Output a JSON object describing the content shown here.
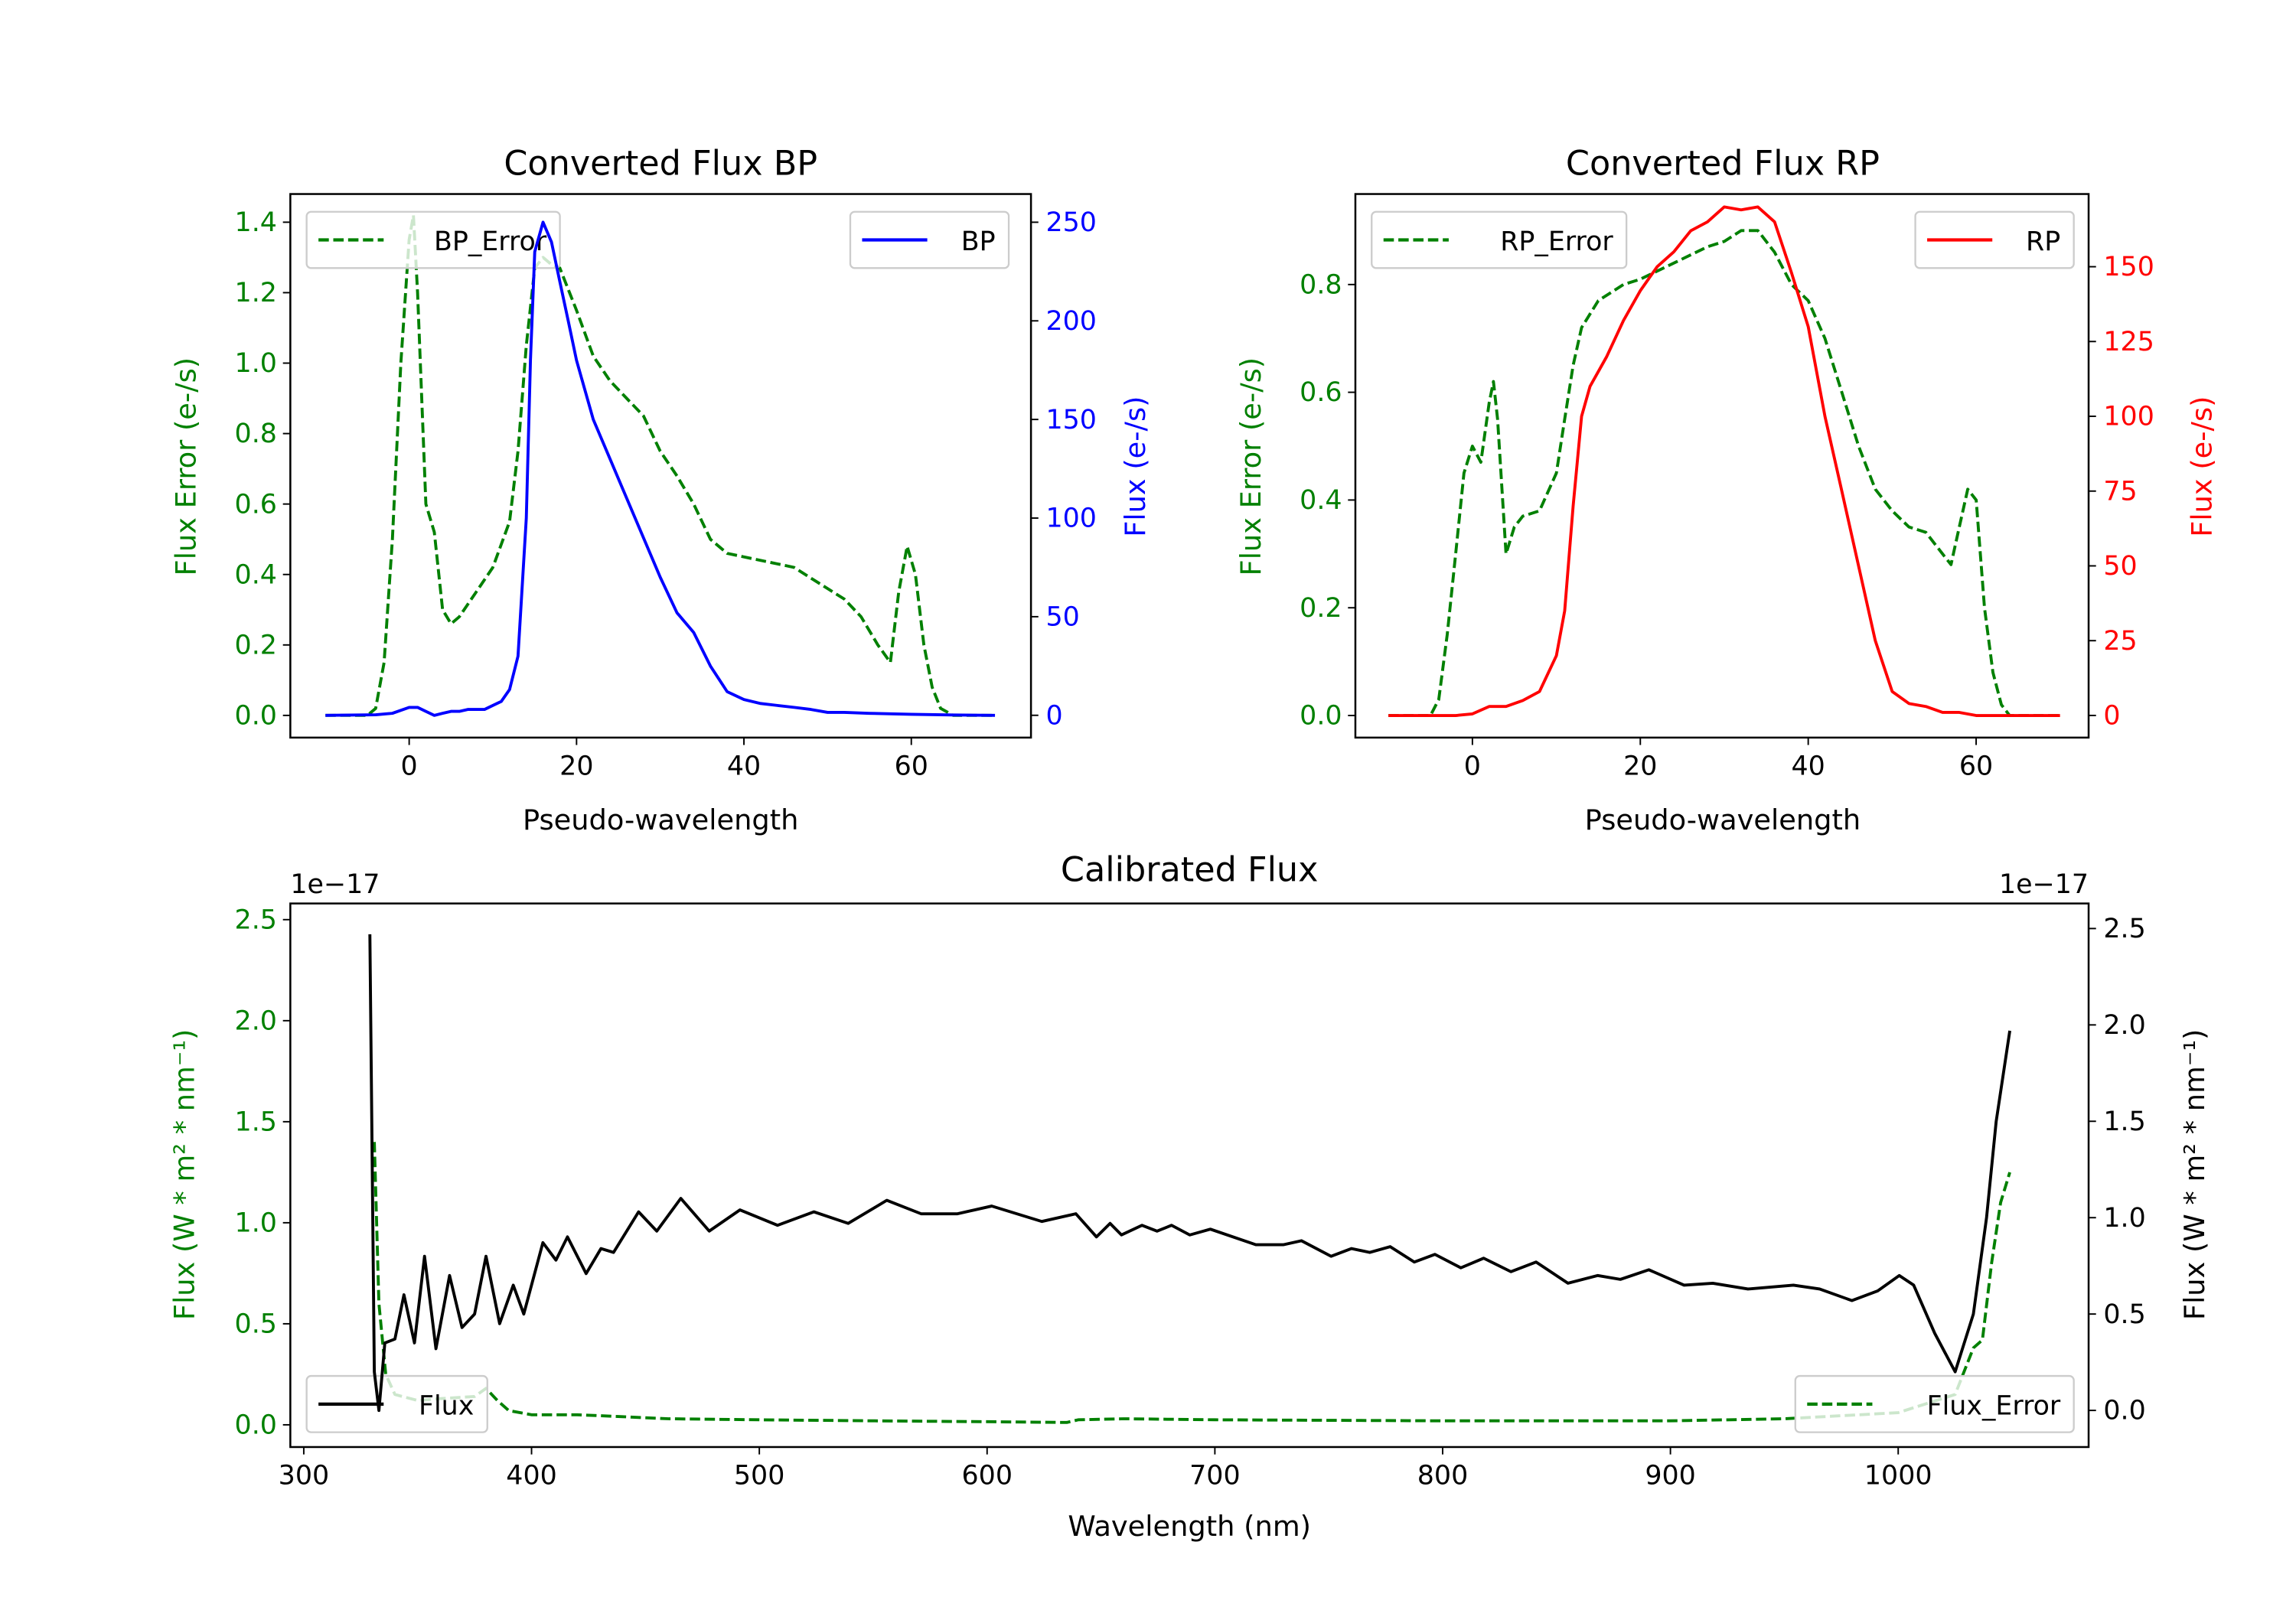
{
  "chart_data": [
    {
      "type": "line",
      "title": "Converted Flux BP",
      "xlabel": "Pseudo-wavelength",
      "ylabel": "Flux Error (e-/s)",
      "ylabel_right": "Flux (e-/s)",
      "xlim": [
        -14.2,
        74.3
      ],
      "ylim": [
        -0.063,
        1.48
      ],
      "ylim_right": [
        -11.3,
        264.3
      ],
      "xticks": [
        0,
        20,
        40,
        60
      ],
      "yticks": [
        "0.0",
        "0.2",
        "0.4",
        "0.6",
        "0.8",
        "1.0",
        "1.2",
        "1.4"
      ],
      "yticks_right": [
        0,
        50,
        100,
        150,
        200,
        250
      ],
      "left_color": "#008000",
      "right_color": "#0000ff",
      "legend_left": {
        "label": "BP_Error",
        "placement": "upper-left"
      },
      "legend_right": {
        "label": "BP",
        "placement": "upper-right"
      },
      "series": [
        {
          "name": "BP_Error",
          "axis": "left",
          "color": "#008000",
          "style": "dashed",
          "x": [
            -10,
            -5,
            -4,
            -3,
            -2,
            -1,
            0,
            0.5,
            1,
            2,
            3,
            4,
            5,
            6,
            8,
            10,
            12,
            13,
            14,
            15,
            16,
            17,
            18,
            20,
            22,
            24,
            26,
            28,
            30,
            32,
            34,
            36,
            38,
            40,
            44,
            46,
            48,
            50,
            52,
            54,
            56,
            57.5,
            58.5,
            59.5,
            60.5,
            61.5,
            62.5,
            63.5,
            65,
            70
          ],
          "y": [
            0,
            0,
            0.02,
            0.15,
            0.5,
            1.0,
            1.35,
            1.42,
            1.2,
            0.6,
            0.52,
            0.3,
            0.26,
            0.28,
            0.35,
            0.42,
            0.55,
            0.75,
            1.05,
            1.27,
            1.3,
            1.28,
            1.27,
            1.15,
            1.02,
            0.95,
            0.9,
            0.85,
            0.75,
            0.68,
            0.6,
            0.5,
            0.46,
            0.45,
            0.43,
            0.42,
            0.39,
            0.36,
            0.33,
            0.28,
            0.2,
            0.15,
            0.35,
            0.48,
            0.4,
            0.2,
            0.08,
            0.02,
            0,
            0
          ]
        },
        {
          "name": "BP",
          "axis": "right",
          "color": "#0000ff",
          "style": "solid",
          "x": [
            -10,
            -4,
            -2,
            0,
            1,
            2,
            3,
            4,
            5,
            6,
            7,
            8,
            9,
            10,
            11,
            12,
            13,
            14,
            14.5,
            15,
            16,
            17,
            18,
            19,
            20,
            22,
            24,
            26,
            28,
            30,
            32,
            34,
            36,
            38,
            40,
            42,
            44,
            46,
            48,
            50,
            52,
            55,
            60,
            65,
            70
          ],
          "y": [
            0,
            0.3,
            1,
            4,
            4,
            2,
            0,
            1,
            2,
            2,
            3,
            3,
            3,
            5,
            7,
            13,
            30,
            100,
            180,
            235,
            250,
            240,
            220,
            200,
            180,
            150,
            130,
            110,
            90,
            70,
            52,
            42,
            25,
            12,
            8,
            6,
            5,
            4,
            3,
            1.5,
            1.5,
            1,
            0.5,
            0.2,
            0
          ]
        }
      ]
    },
    {
      "type": "line",
      "title": "Converted Flux RP",
      "xlabel": "Pseudo-wavelength",
      "ylabel": "Flux Error (e-/s)",
      "ylabel_right": "Flux (e-/s)",
      "xlim": [
        -13.94,
        73.4
      ],
      "ylim": [
        -0.041,
        0.968
      ],
      "ylim_right": [
        -7.4,
        174.3
      ],
      "xticks": [
        0,
        20,
        40,
        60
      ],
      "yticks": [
        "0.0",
        "0.2",
        "0.4",
        "0.6",
        "0.8"
      ],
      "yticks_right": [
        0,
        25,
        50,
        75,
        100,
        125,
        150
      ],
      "left_color": "#008000",
      "right_color": "#ff0000",
      "legend_left": {
        "label": "RP_Error",
        "placement": "upper-left"
      },
      "legend_right": {
        "label": "RP",
        "placement": "upper-right"
      },
      "series": [
        {
          "name": "RP_Error",
          "axis": "left",
          "color": "#008000",
          "style": "dashed",
          "x": [
            -10,
            -5,
            -4,
            -3,
            -2,
            -1,
            0,
            1,
            2,
            2.5,
            3,
            4,
            5,
            6,
            8,
            10,
            11,
            12,
            13,
            15,
            18,
            20,
            24,
            28,
            30,
            32,
            34,
            36,
            38,
            40,
            42,
            44,
            46,
            48,
            50,
            52,
            54,
            56,
            57,
            58,
            59,
            60,
            61,
            62,
            63,
            64,
            70
          ],
          "y": [
            0,
            0,
            0.03,
            0.15,
            0.3,
            0.45,
            0.5,
            0.47,
            0.58,
            0.62,
            0.55,
            0.3,
            0.35,
            0.37,
            0.38,
            0.45,
            0.55,
            0.65,
            0.72,
            0.77,
            0.8,
            0.81,
            0.84,
            0.87,
            0.88,
            0.9,
            0.9,
            0.86,
            0.8,
            0.77,
            0.7,
            0.6,
            0.5,
            0.42,
            0.38,
            0.35,
            0.34,
            0.3,
            0.28,
            0.35,
            0.42,
            0.4,
            0.2,
            0.08,
            0.02,
            0,
            0
          ]
        },
        {
          "name": "RP",
          "axis": "right",
          "color": "#ff0000",
          "style": "solid",
          "x": [
            -10,
            -2,
            0,
            2,
            4,
            6,
            8,
            10,
            11,
            12,
            13,
            14,
            16,
            18,
            20,
            22,
            24,
            26,
            28,
            30,
            32,
            34,
            36,
            38,
            40,
            42,
            44,
            46,
            48,
            50,
            52,
            54,
            56,
            58,
            60,
            62,
            70
          ],
          "y": [
            0,
            0,
            0.5,
            3,
            3,
            5,
            8,
            20,
            35,
            70,
            100,
            110,
            120,
            132,
            142,
            150,
            155,
            162,
            165,
            170,
            169,
            170,
            165,
            148,
            130,
            100,
            75,
            50,
            25,
            8,
            4,
            3,
            1,
            1,
            0,
            0,
            0
          ]
        }
      ]
    },
    {
      "type": "line",
      "title": "Calibrated Flux",
      "xlabel": "Wavelength (nm)",
      "ylabel": "Flux (W * m² * nm⁻¹)",
      "ylabel_right": "Flux (W * m² * nm⁻¹)",
      "offset_left": "1e−17",
      "offset_right": "1e−17",
      "xlim": [
        294.1,
        1083.6
      ],
      "ylim": [
        -0.11,
        2.58
      ],
      "ylim_right": [
        -0.19,
        2.63
      ],
      "xticks": [
        300,
        400,
        500,
        600,
        700,
        800,
        900,
        1000
      ],
      "yticks": [
        "0.0",
        "0.5",
        "1.0",
        "1.5",
        "2.0",
        "2.5"
      ],
      "yticks_right": [
        "0.0",
        "0.5",
        "1.0",
        "1.5",
        "2.0",
        "2.5"
      ],
      "left_color": "#008000",
      "right_color": "#000000",
      "legend_left": {
        "label": "Flux",
        "placement": "lower-left"
      },
      "legend_right": {
        "label": "Flux_Error",
        "placement": "lower-right"
      },
      "series": [
        {
          "name": "Flux_Error",
          "axis": "left",
          "color": "#008000",
          "style": "dashed",
          "x": [
            331,
            333,
            336,
            340,
            350,
            360,
            375,
            380,
            385,
            390,
            400,
            420,
            440,
            460,
            500,
            550,
            600,
            635,
            640,
            660,
            700,
            800,
            900,
            950,
            1000,
            1025,
            1033,
            1037,
            1041,
            1045,
            1049
          ],
          "y": [
            1.4,
            0.6,
            0.25,
            0.15,
            0.12,
            0.13,
            0.14,
            0.18,
            0.12,
            0.07,
            0.05,
            0.05,
            0.04,
            0.03,
            0.025,
            0.02,
            0.015,
            0.012,
            0.025,
            0.03,
            0.025,
            0.02,
            0.02,
            0.03,
            0.06,
            0.15,
            0.38,
            0.42,
            0.8,
            1.1,
            1.25
          ]
        },
        {
          "name": "Flux",
          "axis": "right",
          "color": "#000000",
          "style": "solid",
          "x": [
            329,
            331,
            333,
            335.6,
            340,
            344,
            348.6,
            353,
            358,
            364,
            369.5,
            375,
            380,
            386,
            392,
            396.6,
            405,
            410.7,
            415.8,
            424,
            430.5,
            436,
            447,
            455,
            465.5,
            478,
            491.5,
            508,
            524,
            539,
            556,
            571,
            587,
            602,
            624,
            639,
            648,
            654,
            659,
            668,
            674.6,
            681,
            689,
            698,
            718,
            730,
            738,
            751,
            760,
            768,
            777,
            787.6,
            796.6,
            808,
            818,
            830,
            841,
            855,
            868,
            878,
            890.5,
            906,
            918.6,
            934,
            954,
            965.5,
            979.7,
            991,
            1000.5,
            1006.8,
            1016,
            1025,
            1033,
            1038.8,
            1043,
            1049
          ],
          "y": [
            2.47,
            0.2,
            0.0,
            0.35,
            0.37,
            0.6,
            0.35,
            0.8,
            0.32,
            0.7,
            0.43,
            0.5,
            0.8,
            0.45,
            0.65,
            0.5,
            0.87,
            0.78,
            0.9,
            0.71,
            0.84,
            0.82,
            1.03,
            0.93,
            1.1,
            0.93,
            1.04,
            0.96,
            1.03,
            0.97,
            1.09,
            1.02,
            1.02,
            1.06,
            0.98,
            1.02,
            0.9,
            0.97,
            0.91,
            0.96,
            0.93,
            0.96,
            0.91,
            0.94,
            0.86,
            0.86,
            0.88,
            0.8,
            0.84,
            0.82,
            0.85,
            0.77,
            0.81,
            0.74,
            0.79,
            0.72,
            0.77,
            0.66,
            0.7,
            0.68,
            0.73,
            0.65,
            0.66,
            0.63,
            0.65,
            0.63,
            0.57,
            0.62,
            0.7,
            0.65,
            0.4,
            0.2,
            0.5,
            1.0,
            1.5,
            1.97
          ]
        }
      ]
    }
  ]
}
